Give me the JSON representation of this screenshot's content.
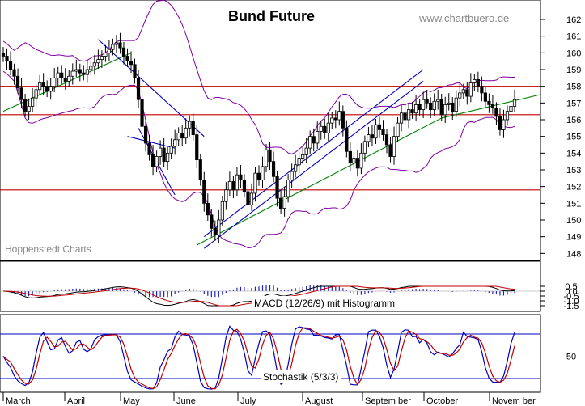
{
  "chart_data": [
    {
      "type": "candlestick",
      "title": "Bund Future",
      "source": "www.chartbuero.de",
      "watermark": "Hoppenstedt Charts",
      "ylim": [
        147.5,
        162.5
      ],
      "y_ticks": [
        "162",
        "161",
        "160",
        "159",
        "158",
        "157",
        "156",
        "155",
        "154",
        "153",
        "152",
        "151",
        "150",
        "149",
        "148"
      ],
      "months": [
        "March",
        "April",
        "May",
        "June",
        "July",
        "August",
        "Septem ber",
        "October",
        "Novem ber"
      ],
      "horizontal_lines": [
        158.0,
        156.3,
        151.8
      ],
      "closes": [
        159.8,
        159.5,
        159.0,
        158.6,
        157.9,
        157.2,
        156.5,
        156.8,
        157.3,
        157.8,
        158.2,
        158.0,
        157.7,
        158.0,
        158.5,
        158.8,
        158.5,
        158.3,
        158.6,
        158.9,
        159.0,
        158.8,
        158.7,
        159.0,
        159.2,
        159.4,
        159.6,
        159.8,
        160.0,
        160.2,
        160.5,
        160.6,
        160.3,
        159.8,
        159.5,
        159.3,
        158.5,
        157.2,
        155.6,
        154.6,
        153.9,
        153.2,
        153.8,
        154.3,
        153.5,
        154.0,
        154.4,
        154.8,
        155.2,
        154.9,
        155.5,
        155.9,
        155.1,
        153.6,
        152.4,
        151.0,
        150.3,
        149.5,
        149.1,
        150.0,
        151.1,
        151.8,
        152.3,
        151.8,
        152.7,
        152.4,
        151.7,
        150.9,
        151.6,
        152.8,
        152.4,
        153.2,
        154.2,
        153.5,
        152.6,
        151.3,
        150.7,
        151.4,
        152.4,
        152.9,
        153.3,
        153.7,
        153.9,
        154.3,
        155.0,
        154.6,
        155.3,
        155.6,
        155.2,
        155.8,
        156.1,
        156.0,
        156.5,
        155.5,
        154.1,
        153.4,
        153.7,
        153.1,
        154.0,
        154.7,
        155.1,
        154.9,
        155.7,
        155.4,
        155.1,
        154.5,
        153.8,
        155.0,
        155.8,
        156.4,
        156.0,
        156.6,
        156.4,
        156.9,
        156.6,
        157.2,
        157.0,
        156.6,
        157.1,
        157.2,
        156.3,
        156.9,
        157.0,
        156.5,
        157.3,
        157.6,
        157.8,
        157.4,
        158.2,
        158.4,
        158.0,
        157.6,
        157.1,
        156.9,
        156.7,
        156.2,
        155.4,
        156.0,
        156.5,
        156.8,
        157.2
      ]
    },
    {
      "type": "line",
      "label": "MACD (12/26/9) mit Histogramm",
      "ylim": [
        -1.5,
        0.5
      ],
      "y_ticks": [
        "0.5",
        "0.0",
        "-0.5",
        "-1.0",
        "-1.5"
      ]
    },
    {
      "type": "line",
      "label": "Stochastik (5/3/3)",
      "ylim": [
        0,
        100
      ],
      "y_ticks": [
        "50"
      ],
      "levels": [
        80,
        20
      ]
    }
  ]
}
